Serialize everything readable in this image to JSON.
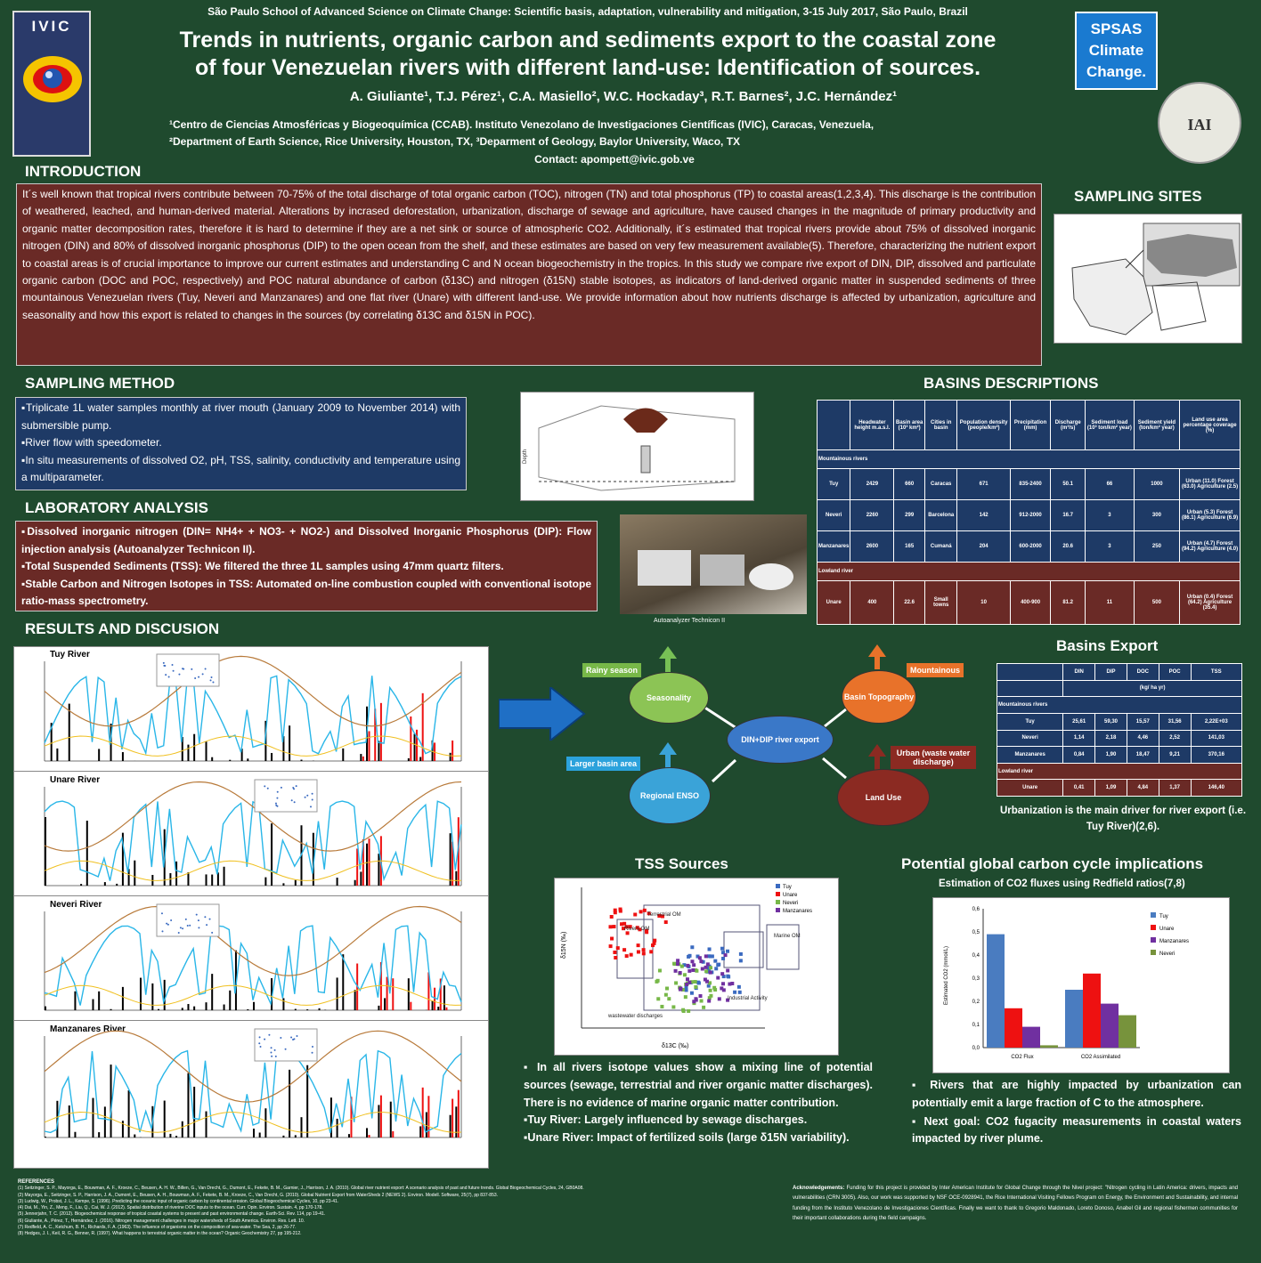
{
  "header": {
    "school": "São Paulo School of Advanced Science on Climate Change: Scientific basis, adaptation, vulnerability and mitigation, 3-15 July 2017, São Paulo, Brazil",
    "title_line1": "Trends in nutrients, organic carbon and sediments export to the coastal zone",
    "title_line2": "of four Venezuelan rivers with different land-use: Identification of sources.",
    "authors": "A. Giuliante¹, T.J. Pérez¹, C.A. Masiello², W.C. Hockaday³, R.T. Barnes², J.C. Hernández¹",
    "affil1": "¹Centro de Ciencias Atmosféricas y Biogeoquímica (CCAB). Instituto Venezolano de Investigaciones Científicas (IVIC), Caracas, Venezuela,",
    "affil2": "²Department of Earth Science, Rice University, Houston, TX, ³Deparment of Geology, Baylor University, Waco, TX",
    "contact": "Contact: apompett@ivic.gob.ve"
  },
  "logos": {
    "ivic": "IVIC",
    "spsas_1": "SPSAS",
    "spsas_2": "Climate",
    "spsas_3": "Change.",
    "iai": "IAI"
  },
  "intro": {
    "heading": "INTRODUCTION",
    "text": "It´s well known that tropical rivers contribute between 70-75% of the total discharge of total organic carbon (TOC), nitrogen (TN) and total phosphorus (TP) to coastal areas(1,2,3,4). This discharge is the contribution of weathered, leached, and human-derived material. Alterations by incrased deforestation, urbanization, discharge of sewage and agriculture, have caused changes in the magnitude of primary productivity and organic matter decomposition rates, therefore it is hard to determine if they are a net sink or source of atmospheric CO2. Additionally, it´s estimated that tropical rivers provide about 75% of dissolved inorganic nitrogen (DIN) and 80% of dissolved inorganic phosphorus (DIP) to the open ocean from the shelf, and these estimates are based on very few measurement available(5). Therefore, characterizing the nutrient export to coastal areas is of crucial importance to improve our current estimates and understanding C and N ocean biogeochemistry in the tropics. In this study we compare rive export of DIN, DIP, dissolved and particulate organic carbon (DOC and POC, respectively) and POC natural abundance of carbon (δ13C) and nitrogen (δ15N) stable isotopes, as indicators of land-derived organic matter in suspended sediments of three mountainous Venezuelan rivers (Tuy, Neveri and Manzanares) and one flat river (Unare) with different land-use. We provide information about how nutrients discharge is affected by urbanization, agriculture and seasonality and how this export is related to changes in the sources (by correlating δ13C and δ15N in POC)."
  },
  "sampling_sites": {
    "heading": "SAMPLING SITES"
  },
  "sampling_method": {
    "heading": "SAMPLING METHOD",
    "bullets": [
      "▪Triplicate 1L water samples monthly at river mouth (January 2009 to November 2014) with submersible pump.",
      "▪River flow with speedometer.",
      "▪In situ measurements of dissolved O2, pH, TSS, salinity, conductivity and temperature using a multiparameter."
    ]
  },
  "lab": {
    "heading": "LABORATORY ANALYSIS",
    "bullets": [
      "▪Dissolved inorganic nitrogen (DIN= NH4+ + NO3- + NO2-) and Dissolved Inorganic Phosphorus (DIP): Flow injection analysis (Autoanalyzer Technicon II).",
      "▪Total Suspended Sediments (TSS): We filtered the three 1L samples using 47mm quartz filters.",
      "▪Stable Carbon and Nitrogen Isotopes in TSS: Automated on-line combustion coupled with conventional isotope ratio-mass spectrometry."
    ],
    "photo_caption": "Autoanalyzer Technicon II"
  },
  "basins": {
    "heading": "BASINS DESCRIPTIONS",
    "columns": [
      "",
      "Headwater height m.a.s.l.",
      "Basin area (10³ km²)",
      "Cities in basin",
      "Population density (people/km²)",
      "Precipitation (mm)",
      "Discharge (m³/s)",
      "Sediment load (10³ ton/km² year)",
      "Sediment yield (ton/km² year)",
      "Land use area percentage coverage (%)"
    ],
    "group_mountain": "Mountainous rivers",
    "group_lowland": "Lowland river",
    "rows": [
      [
        "Tuy",
        "2429",
        "660",
        "Caracas",
        "671",
        "835-2400",
        "50.1",
        "66",
        "1000",
        "Urban (11.0) Forest (63.0) Agriculture (2.5)"
      ],
      [
        "Neveri",
        "2260",
        "299",
        "Barcelona",
        "142",
        "912-2000",
        "16.7",
        "3",
        "300",
        "Urban (5.3) Forest (86.1) Agriculture (6.9)"
      ],
      [
        "Manzanares",
        "2600",
        "165",
        "Cumaná",
        "204",
        "600-2000",
        "20.6",
        "3",
        "250",
        "Urban (4.7) Forest (94.2) Agriculture (4.0)"
      ],
      [
        "Unare",
        "400",
        "22.6",
        "Small towns",
        "10",
        "400-900",
        "81.2",
        "11",
        "500",
        "Urban (0.4) Forest (64.2) Agriculture (35.4)"
      ]
    ]
  },
  "results": {
    "heading": "RESULTS AND DISCUSION",
    "river_charts": [
      {
        "name": "Tuy River"
      },
      {
        "name": "Unare River"
      },
      {
        "name": "Neveri River"
      },
      {
        "name": "Manzanares River"
      }
    ]
  },
  "diagram": {
    "center": "DIN+DIP river export",
    "seasonality": "Seasonality",
    "topography": "Basin Topography",
    "regional": "Regional ENSO",
    "landuse": "Land Use",
    "rainy": "Rainy season",
    "mountainous": "Mountainous",
    "larger": "Larger basin area",
    "urban": "Urban (waste water discharge)"
  },
  "export": {
    "heading": "Basins Export",
    "columns": [
      "",
      "DIN",
      "DIP",
      "DOC",
      "POC",
      "TSS"
    ],
    "units": "(kg/ ha yr)",
    "group_mountain": "Mountainous rivers",
    "group_lowland": "Lowland river",
    "rows": [
      [
        "Tuy",
        "25,61",
        "59,30",
        "15,57",
        "31,56",
        "2,22E+03"
      ],
      [
        "Neveri",
        "1,14",
        "2,18",
        "4,46",
        "2,52",
        "141,03"
      ],
      [
        "Manzanares",
        "0,84",
        "1,90",
        "18,47",
        "9,21",
        "370,16"
      ],
      [
        "Unare",
        "0,41",
        "1,09",
        "4,84",
        "1,37",
        "146,40"
      ]
    ],
    "note": "Urbanization is the main driver for river export (i.e. Tuy River)(2,6)."
  },
  "tss": {
    "heading": "TSS Sources",
    "bullets": [
      "▪ In all rivers isotope values show a mixing line of potential sources (sewage, terrestrial and river organic matter discharges). There is no evidence of marine organic matter contribution.",
      "▪Tuy River: Largely influenced by sewage discharges.",
      "▪Unare River: Impact of fertilized soils (large δ15N variability)."
    ],
    "legend": [
      "Tuy",
      "Unare",
      "Neveri",
      "Manzanares"
    ],
    "labels": [
      "Terrestrial OM",
      "Rivers OM",
      "Marine OM",
      "Industrial Activity",
      "wastewater discharges"
    ],
    "xlabel": "δ13C (‰)",
    "ylabel": "δ15N (‰)"
  },
  "carbon": {
    "heading": "Potential global carbon cycle implications",
    "sub": "Estimation of CO2 fluxes using Redfield ratios(7,8)",
    "bullets": [
      "▪ Rivers that are highly impacted by urbanization can potentially emit a large fraction of C to the atmosphere.",
      "▪ Next goal: CO2 fugacity measurements in coastal waters impacted by river plume."
    ]
  },
  "chart_data": {
    "type": "bar",
    "categories": [
      "CO2 Flux",
      "CO2 Assimilated"
    ],
    "series": [
      {
        "name": "Tuy",
        "values": [
          0.49,
          0.25
        ]
      },
      {
        "name": "Unare",
        "values": [
          0.17,
          0.32
        ]
      },
      {
        "name": "Manzanares",
        "values": [
          0.09,
          0.19
        ]
      },
      {
        "name": "Neveri",
        "values": [
          0.01,
          0.14
        ]
      }
    ],
    "ylabel": "Estimated CO2 (mmol/L)",
    "ylim": [
      0,
      0.6
    ],
    "yticks": [
      "0,0",
      "0,1",
      "0,2",
      "0,3",
      "0,4",
      "0,5",
      "0,6"
    ],
    "colors": [
      "#4a7cc0",
      "#ee1111",
      "#7030a0",
      "#77933c"
    ]
  },
  "references": {
    "heading": "REFERENCES",
    "items": [
      "(1) Seitzinger, S. P., Mayorga, E., Bouwman, A. F., Kroeze, C., Beusen, A. H. W., Billen, G., Van Drecht, G., Dumont, E., Fekete, B. M., Garnier, J., Harrison, J. A. (2010). Global river nutrient export: A scenario analysis of past and future trends. Global Biogeochemical Cycles, 24, GB0A08.",
      "(2) Mayorga, E., Seitzinger, S. P., Harrison, J. A., Dumont, E., Beusen, A. H., Bouwman, A. F., Fekete, B. M., Kroeze, C., Van Drecht, G. (2010). Global Nutrient Export from WaterSheds 2 (NEWS 2). Environ. Modell. Software, 25(7), pp 837-853.",
      "(3) Ludwig, W., Probst, J. L., Kempe, S. (1996). Predicting the oceanic input of organic carbon by continental erosion. Global Biogeochemical Cycles, 10, pp 23-41.",
      "(4) Dai, M., Yin, Z., Meng, F., Liu, Q., Cai, W. J. (2012). Spatial distribution of riverine DOC inputs to the ocean. Curr. Opin. Environ. Sustain. 4, pp 170-178.",
      "(5) Jennerjahn, T. C. (2012). Biogeochemical response of tropical coastal systems to present and past environmental change. Earth-Sci. Rev. 114, pp 19-41.",
      "(6) Giuliante, A., Pérez, T., Hernández, J. (2016). Nitrogen management challenges in major watersheds of South America. Environ. Res. Lett. 10.",
      "(7) Redfield, A. C., Ketchum, B. H., Richards, F. A. (1963). The influence of organisms on the composition of sea-water. The Sea, 2, pp 26-77.",
      "(8) Hedges, J. I., Keil, R. G., Benner, R. (1997). What happens to terrestrial organic matter in the ocean? Organic Geochemistry 27, pp 195-212."
    ]
  },
  "ack": {
    "heading": "Acknowledgements:",
    "text": "Funding for this project is provided by Inter American Institute for Global Change through the Nivel project: \"Nitrogen cycling in Latin America: drivers, impacts and vulnerabilities (CRN 3005). Also, our work was supported by NSF OCE-0928941, the Rice International Visiting Fellows Program on Energy, the Environment and Sustainability, and internal funding from the Instituto Venezolano de Investigaciones Científicas. Finally we want to thank to Gregorio Maldonado, Loreto Donoso, Anabel Gil and regional fishermen communities for their important collaborations during the field campaigns."
  }
}
